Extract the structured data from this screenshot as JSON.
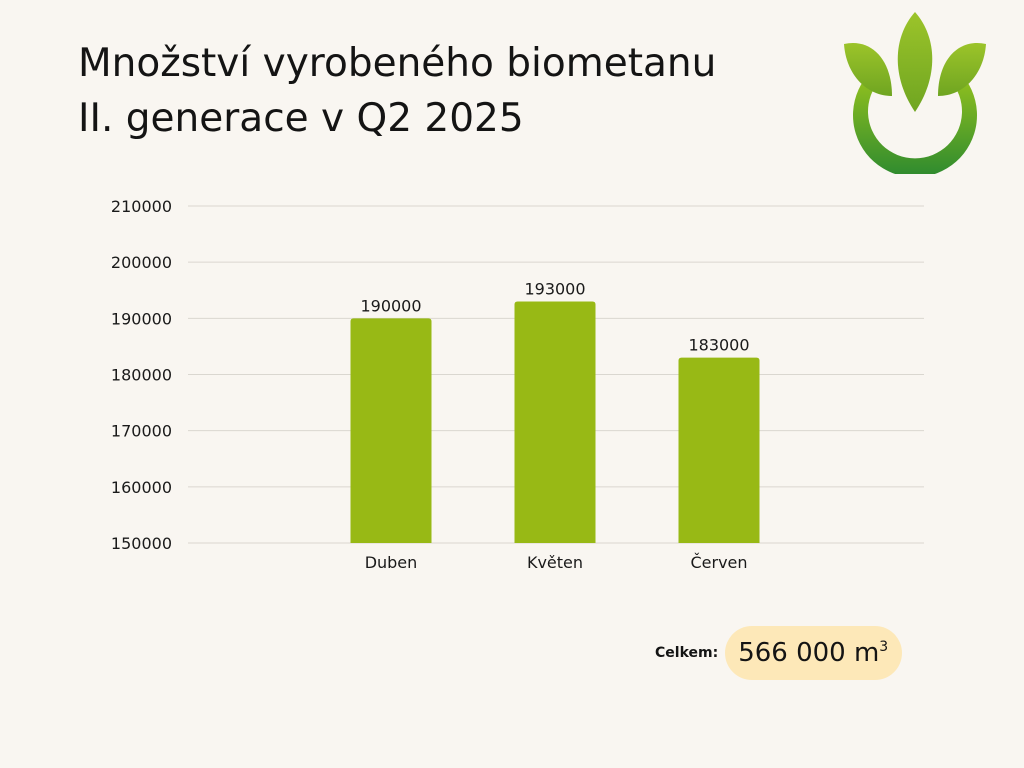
{
  "title_lines": [
    "Množství vyrobeného biometanu",
    "II. generace v Q2 2025"
  ],
  "logo": {
    "icon": "sprout-leaf-logo",
    "colors": [
      "#8cbc1e",
      "#2e8b2e"
    ]
  },
  "total": {
    "label": "Celkem:",
    "value": "566 000 m",
    "unit_superscript": "3"
  },
  "colors": {
    "bar": "#98b915",
    "grid": "#dad7d0",
    "pill": "#fde8b8",
    "background": "#f9f6f1"
  },
  "chart_data": {
    "type": "bar",
    "title": "",
    "xlabel": "",
    "ylabel": "",
    "categories": [
      "Duben",
      "Květen",
      "Červen"
    ],
    "values": [
      190000,
      193000,
      183000
    ],
    "value_labels": [
      "190000",
      "193000",
      "183000"
    ],
    "ylim": [
      150000,
      210000
    ],
    "yticks": [
      150000,
      160000,
      170000,
      180000,
      190000,
      200000,
      210000
    ],
    "ytick_labels": [
      "150000",
      "160000",
      "170000",
      "180000",
      "190000",
      "200000",
      "210000"
    ],
    "grid": true,
    "legend": "none"
  }
}
